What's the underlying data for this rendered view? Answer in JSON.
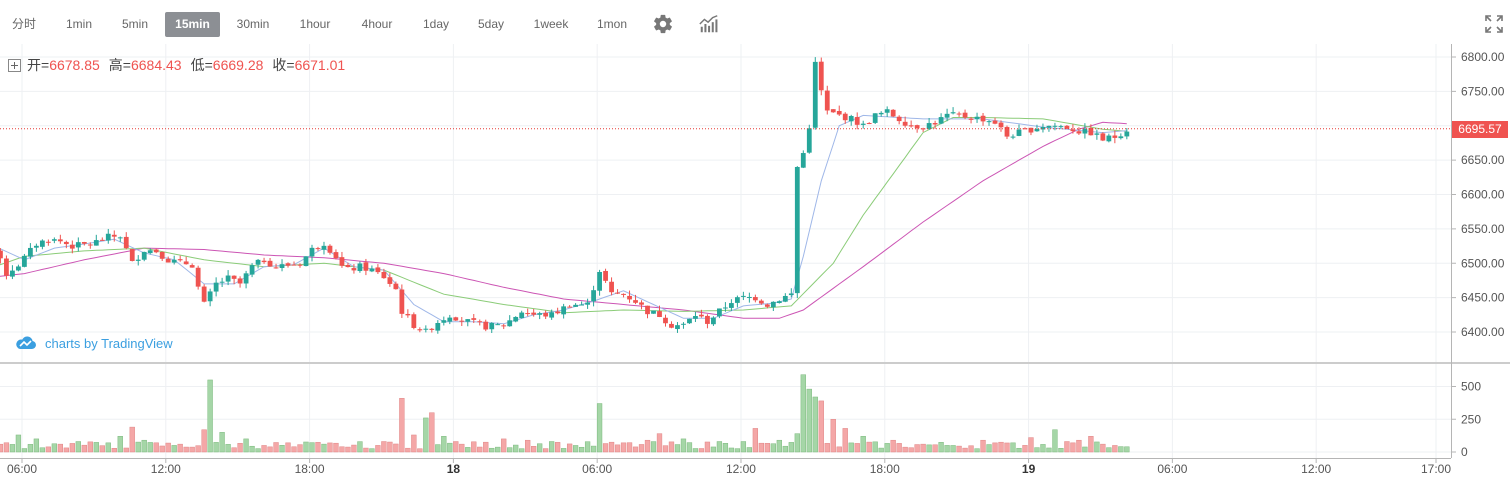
{
  "toolbar": {
    "timeframes": [
      "分时",
      "1min",
      "5min",
      "15min",
      "30min",
      "1hour",
      "4hour",
      "1day",
      "5day",
      "1week",
      "1mon"
    ],
    "active": "15min",
    "icons": [
      "settings-gear-icon",
      "indicators-icon",
      "fullscreen-icon"
    ]
  },
  "legend": {
    "open_label": "开=",
    "open": "6678.85",
    "high_label": "高=",
    "high": "6684.43",
    "low_label": "低=",
    "low": "6669.28",
    "close_label": "收=",
    "close": "6671.01"
  },
  "watermark": "charts by TradingView",
  "last_price": "6695.57",
  "colors": {
    "up": "#26a69a",
    "down": "#ef5350",
    "up_vol": "#a5d6a7",
    "down_vol": "#f4a7a7",
    "ma_fast": "#9fb7e8",
    "ma_mid": "#8bcc78",
    "ma_slow": "#cc55b4",
    "price_line": "#e53935"
  },
  "chart_data": {
    "type": "candlestick",
    "price_axis": {
      "ticks": [
        "6800.00",
        "6750.00",
        "6700.00",
        "6650.00",
        "6600.00",
        "6550.00",
        "6500.00",
        "6450.00",
        "6400.00"
      ],
      "range": [
        6375,
        6810
      ]
    },
    "volume_axis": {
      "ticks": [
        "500",
        "250",
        "0"
      ],
      "range": [
        0,
        650
      ]
    },
    "time_axis": {
      "labels": [
        {
          "label": "06:00",
          "hour": 6,
          "bold": false
        },
        {
          "label": "12:00",
          "hour": 12,
          "bold": false
        },
        {
          "label": "18:00",
          "hour": 18,
          "bold": false
        },
        {
          "label": "18",
          "hour": 24,
          "bold": true
        },
        {
          "label": "06:00",
          "hour": 30,
          "bold": false
        },
        {
          "label": "12:00",
          "hour": 36,
          "bold": false
        },
        {
          "label": "18:00",
          "hour": 42,
          "bold": false
        },
        {
          "label": "19",
          "hour": 48,
          "bold": true
        },
        {
          "label": "06:00",
          "hour": 54,
          "bold": false
        },
        {
          "label": "12:00",
          "hour": 60,
          "bold": false
        },
        {
          "label": "17:00",
          "hour": 65,
          "bold": false
        }
      ],
      "start_hour": 3.6
    },
    "close_path": [
      [
        0,
        6535
      ],
      [
        2,
        6540
      ],
      [
        5,
        6520
      ],
      [
        7,
        6485
      ],
      [
        9,
        6498
      ],
      [
        12,
        6528
      ],
      [
        14,
        6535
      ],
      [
        16,
        6532
      ],
      [
        18,
        6525
      ],
      [
        21,
        6528
      ],
      [
        24,
        6538
      ],
      [
        26,
        6540
      ],
      [
        27,
        6520
      ],
      [
        28,
        6500
      ],
      [
        30,
        6520
      ],
      [
        32,
        6518
      ],
      [
        34,
        6505
      ],
      [
        36,
        6500
      ],
      [
        37,
        6500
      ],
      [
        38,
        6498
      ],
      [
        39,
        6465
      ],
      [
        40,
        6440
      ],
      [
        42,
        6470
      ],
      [
        44,
        6478
      ],
      [
        46,
        6470
      ],
      [
        48,
        6495
      ],
      [
        50,
        6505
      ],
      [
        52,
        6495
      ],
      [
        56,
        6500
      ],
      [
        58,
        6520
      ],
      [
        60,
        6530
      ],
      [
        62,
        6510
      ],
      [
        63,
        6495
      ],
      [
        64,
        6490
      ],
      [
        66,
        6495
      ],
      [
        68,
        6490
      ],
      [
        70,
        6480
      ],
      [
        72,
        6462
      ],
      [
        73,
        6430
      ],
      [
        75,
        6410
      ],
      [
        77,
        6400
      ],
      [
        79,
        6415
      ],
      [
        81,
        6425
      ],
      [
        84,
        6415
      ],
      [
        87,
        6408
      ],
      [
        90,
        6410
      ],
      [
        93,
        6430
      ],
      [
        95,
        6425
      ],
      [
        98,
        6425
      ],
      [
        101,
        6440
      ],
      [
        104,
        6440
      ],
      [
        106,
        6490
      ],
      [
        108,
        6455
      ],
      [
        110,
        6455
      ],
      [
        112,
        6445
      ],
      [
        114,
        6430
      ],
      [
        116,
        6425
      ],
      [
        118,
        6410
      ],
      [
        120,
        6410
      ],
      [
        122,
        6425
      ],
      [
        124,
        6415
      ],
      [
        126,
        6430
      ],
      [
        128,
        6445
      ],
      [
        130,
        6450
      ],
      [
        132,
        6450
      ],
      [
        134,
        6440
      ],
      [
        136,
        6448
      ],
      [
        138,
        6455
      ],
      [
        139,
        6640
      ],
      [
        140,
        6660
      ],
      [
        141,
        6700
      ],
      [
        142,
        6790
      ],
      [
        143,
        6750
      ],
      [
        144,
        6720
      ],
      [
        146,
        6715
      ],
      [
        148,
        6710
      ],
      [
        150,
        6700
      ],
      [
        152,
        6715
      ],
      [
        154,
        6720
      ],
      [
        156,
        6710
      ],
      [
        158,
        6700
      ],
      [
        160,
        6700
      ],
      [
        162,
        6705
      ],
      [
        164,
        6715
      ],
      [
        166,
        6715
      ],
      [
        168,
        6712
      ],
      [
        170,
        6710
      ],
      [
        172,
        6705
      ],
      [
        174,
        6685
      ],
      [
        176,
        6690
      ],
      [
        178,
        6695
      ],
      [
        180,
        6700
      ],
      [
        182,
        6700
      ],
      [
        184,
        6698
      ],
      [
        186,
        6692
      ],
      [
        188,
        6690
      ],
      [
        190,
        6680
      ],
      [
        192,
        6684
      ],
      [
        194,
        6695
      ]
    ],
    "ma_fast": [
      [
        0,
        6525
      ],
      [
        5,
        6525
      ],
      [
        10,
        6505
      ],
      [
        15,
        6522
      ],
      [
        20,
        6528
      ],
      [
        25,
        6535
      ],
      [
        30,
        6515
      ],
      [
        35,
        6505
      ],
      [
        40,
        6470
      ],
      [
        45,
        6470
      ],
      [
        50,
        6495
      ],
      [
        55,
        6498
      ],
      [
        60,
        6522
      ],
      [
        65,
        6495
      ],
      [
        70,
        6490
      ],
      [
        75,
        6440
      ],
      [
        80,
        6415
      ],
      [
        85,
        6415
      ],
      [
        90,
        6412
      ],
      [
        95,
        6425
      ],
      [
        100,
        6432
      ],
      [
        105,
        6445
      ],
      [
        110,
        6460
      ],
      [
        115,
        6440
      ],
      [
        120,
        6420
      ],
      [
        125,
        6420
      ],
      [
        130,
        6438
      ],
      [
        135,
        6442
      ],
      [
        138,
        6448
      ],
      [
        140,
        6510
      ],
      [
        143,
        6620
      ],
      [
        146,
        6700
      ],
      [
        150,
        6715
      ],
      [
        160,
        6710
      ],
      [
        170,
        6710
      ],
      [
        180,
        6698
      ],
      [
        190,
        6690
      ],
      [
        194,
        6693
      ]
    ],
    "ma_mid": [
      [
        0,
        6462
      ],
      [
        5,
        6495
      ],
      [
        10,
        6510
      ],
      [
        20,
        6518
      ],
      [
        30,
        6522
      ],
      [
        40,
        6505
      ],
      [
        50,
        6495
      ],
      [
        60,
        6500
      ],
      [
        70,
        6490
      ],
      [
        80,
        6455
      ],
      [
        90,
        6440
      ],
      [
        100,
        6428
      ],
      [
        110,
        6432
      ],
      [
        120,
        6430
      ],
      [
        130,
        6432
      ],
      [
        138,
        6438
      ],
      [
        145,
        6500
      ],
      [
        150,
        6570
      ],
      [
        155,
        6630
      ],
      [
        160,
        6690
      ],
      [
        165,
        6712
      ],
      [
        170,
        6712
      ],
      [
        180,
        6710
      ],
      [
        190,
        6695
      ],
      [
        194,
        6692
      ]
    ],
    "ma_slow": [
      [
        0,
        6475
      ],
      [
        10,
        6485
      ],
      [
        20,
        6505
      ],
      [
        30,
        6522
      ],
      [
        40,
        6520
      ],
      [
        50,
        6512
      ],
      [
        60,
        6508
      ],
      [
        70,
        6500
      ],
      [
        80,
        6485
      ],
      [
        90,
        6465
      ],
      [
        100,
        6448
      ],
      [
        110,
        6440
      ],
      [
        120,
        6432
      ],
      [
        130,
        6420
      ],
      [
        136,
        6420
      ],
      [
        140,
        6432
      ],
      [
        150,
        6495
      ],
      [
        160,
        6560
      ],
      [
        170,
        6620
      ],
      [
        180,
        6670
      ],
      [
        186,
        6695
      ],
      [
        190,
        6705
      ],
      [
        194,
        6703
      ]
    ],
    "volume_spikes": [
      [
        0,
        40
      ],
      [
        5,
        30
      ],
      [
        9,
        130
      ],
      [
        12,
        100
      ],
      [
        16,
        60
      ],
      [
        19,
        80
      ],
      [
        24,
        70
      ],
      [
        26,
        120
      ],
      [
        28,
        190
      ],
      [
        30,
        90
      ],
      [
        36,
        60
      ],
      [
        40,
        170
      ],
      [
        41,
        550
      ],
      [
        43,
        150
      ],
      [
        47,
        100
      ],
      [
        50,
        50
      ],
      [
        55,
        40
      ],
      [
        60,
        60
      ],
      [
        63,
        40
      ],
      [
        67,
        30
      ],
      [
        70,
        80
      ],
      [
        73,
        410
      ],
      [
        75,
        130
      ],
      [
        77,
        260
      ],
      [
        78,
        300
      ],
      [
        80,
        120
      ],
      [
        82,
        80
      ],
      [
        90,
        100
      ],
      [
        94,
        90
      ],
      [
        98,
        80
      ],
      [
        102,
        50
      ],
      [
        106,
        370
      ],
      [
        110,
        70
      ],
      [
        114,
        90
      ],
      [
        116,
        140
      ],
      [
        120,
        100
      ],
      [
        126,
        80
      ],
      [
        130,
        80
      ],
      [
        132,
        180
      ],
      [
        136,
        90
      ],
      [
        139,
        140
      ],
      [
        140,
        590
      ],
      [
        141,
        480
      ],
      [
        142,
        420
      ],
      [
        143,
        390
      ],
      [
        145,
        250
      ],
      [
        147,
        180
      ],
      [
        150,
        120
      ],
      [
        155,
        90
      ],
      [
        160,
        60
      ],
      [
        165,
        50
      ],
      [
        170,
        90
      ],
      [
        175,
        70
      ],
      [
        178,
        110
      ],
      [
        182,
        170
      ],
      [
        184,
        80
      ],
      [
        186,
        90
      ],
      [
        188,
        120
      ],
      [
        190,
        60
      ],
      [
        192,
        50
      ],
      [
        194,
        40
      ]
    ]
  }
}
